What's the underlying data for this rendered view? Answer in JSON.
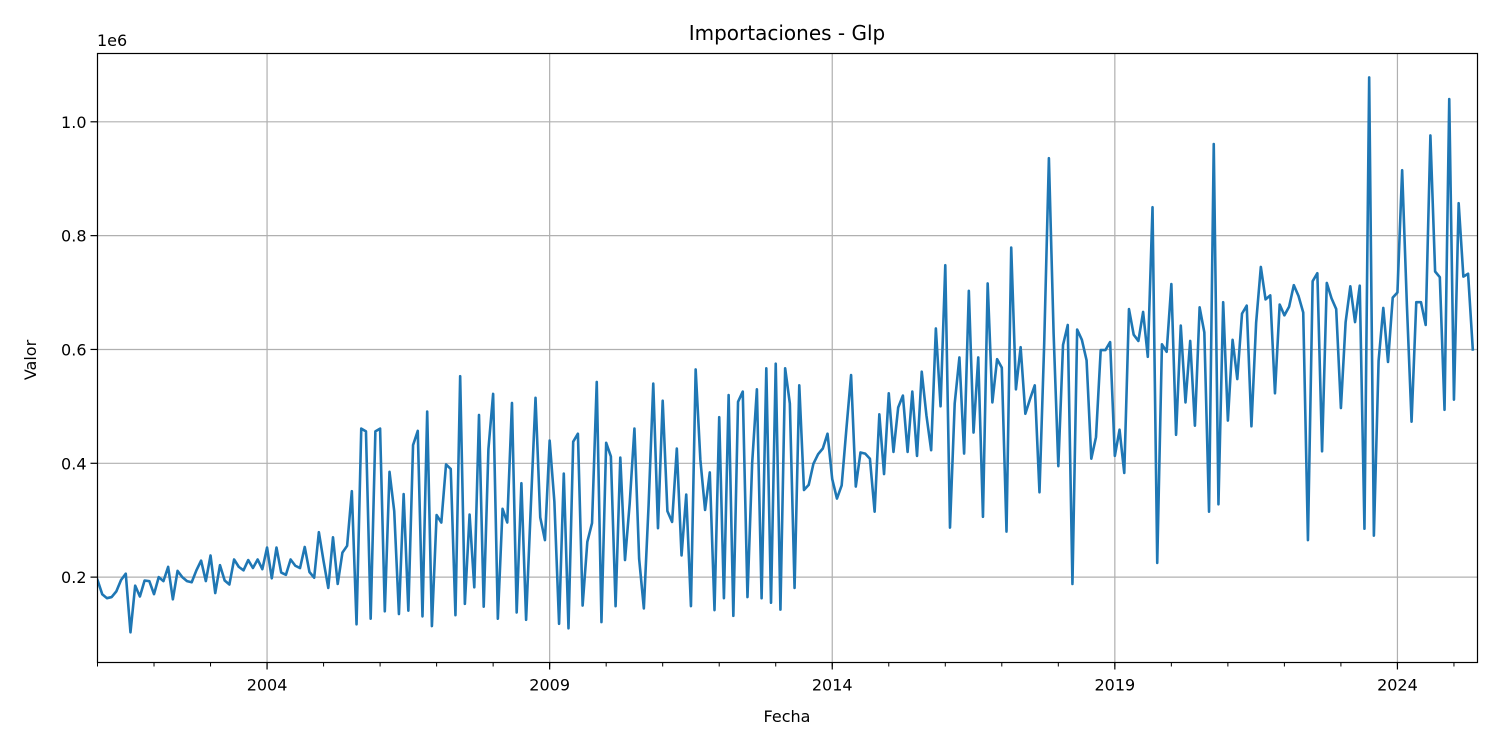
{
  "chart_data": {
    "type": "line",
    "title": "Importaciones - Glp",
    "xlabel": "Fecha",
    "ylabel": "Valor",
    "y_offset_label": "1e6",
    "x_ticks": [
      "2004",
      "2009",
      "2014",
      "2019",
      "2024"
    ],
    "y_ticks": [
      "0.2",
      "0.4",
      "0.6",
      "0.8",
      "1.0"
    ],
    "x_range": [
      "2001-01",
      "2025-06"
    ],
    "y_range": [
      0.05,
      1.12
    ],
    "grid": true,
    "series": [
      {
        "color": "#1f77b4",
        "start": "2001-01",
        "frequency": "monthly",
        "values": [
          195000,
          170000,
          163000,
          165000,
          175000,
          195000,
          206000,
          103000,
          185000,
          166000,
          194000,
          193000,
          170000,
          200000,
          193000,
          218000,
          161000,
          211000,
          200000,
          193000,
          191000,
          212000,
          229000,
          193000,
          238000,
          172000,
          221000,
          194000,
          187000,
          231000,
          218000,
          212000,
          230000,
          216000,
          231000,
          214000,
          252000,
          198000,
          252000,
          208000,
          204000,
          231000,
          220000,
          216000,
          253000,
          209000,
          199000,
          279000,
          228000,
          181000,
          270000,
          188000,
          243000,
          255000,
          351000,
          117000,
          461000,
          456000,
          127000,
          456000,
          461000,
          140000,
          385000,
          316000,
          135000,
          346000,
          141000,
          432000,
          457000,
          131000,
          491000,
          114000,
          309000,
          296000,
          398000,
          390000,
          133000,
          553000,
          153000,
          310000,
          182000,
          485000,
          148000,
          425000,
          522000,
          127000,
          320000,
          296000,
          506000,
          138000,
          365000,
          125000,
          324000,
          515000,
          305000,
          265000,
          440000,
          333000,
          118000,
          382000,
          110000,
          438000,
          452000,
          150000,
          262000,
          295000,
          543000,
          121000,
          436000,
          412000,
          149000,
          410000,
          230000,
          330000,
          461000,
          232000,
          145000,
          325000,
          540000,
          286000,
          510000,
          316000,
          297000,
          426000,
          238000,
          345000,
          149000,
          565000,
          406000,
          318000,
          384000,
          142000,
          481000,
          163000,
          520000,
          132000,
          508000,
          526000,
          165000,
          401000,
          530000,
          163000,
          567000,
          155000,
          575000,
          143000,
          567000,
          505000,
          181000,
          537000,
          353000,
          362000,
          399000,
          416000,
          426000,
          452000,
          372000,
          338000,
          361000,
          460000,
          555000,
          359000,
          419000,
          417000,
          408000,
          315000,
          486000,
          381000,
          523000,
          420000,
          498000,
          519000,
          420000,
          526000,
          413000,
          561000,
          484000,
          423000,
          637000,
          500000,
          748000,
          287000,
          505000,
          586000,
          417000,
          703000,
          454000,
          586000,
          306000,
          716000,
          507000,
          583000,
          568000,
          280000,
          779000,
          530000,
          604000,
          487000,
          513000,
          537000,
          349000,
          610000,
          936000,
          628000,
          395000,
          608000,
          643000,
          188000,
          635000,
          617000,
          581000,
          408000,
          446000,
          599000,
          599000,
          613000,
          413000,
          459000,
          383000,
          671000,
          626000,
          615000,
          666000,
          587000,
          850000,
          225000,
          609000,
          596000,
          715000,
          450000,
          642000,
          507000,
          615000,
          466000,
          674000,
          630000,
          315000,
          961000,
          328000,
          683000,
          475000,
          617000,
          548000,
          663000,
          677000,
          465000,
          647000,
          745000,
          688000,
          695000,
          523000,
          679000,
          660000,
          675000,
          713000,
          694000,
          665000,
          265000,
          720000,
          734000,
          421000,
          717000,
          690000,
          671000,
          497000,
          648000,
          711000,
          648000,
          712000,
          285000,
          1078000,
          273000,
          580000,
          673000,
          578000,
          691000,
          700000,
          915000,
          680000,
          473000,
          683000,
          683000,
          643000,
          976000,
          737000,
          727000,
          494000,
          1040000,
          512000,
          857000,
          728000,
          733000,
          600000
        ]
      }
    ]
  }
}
